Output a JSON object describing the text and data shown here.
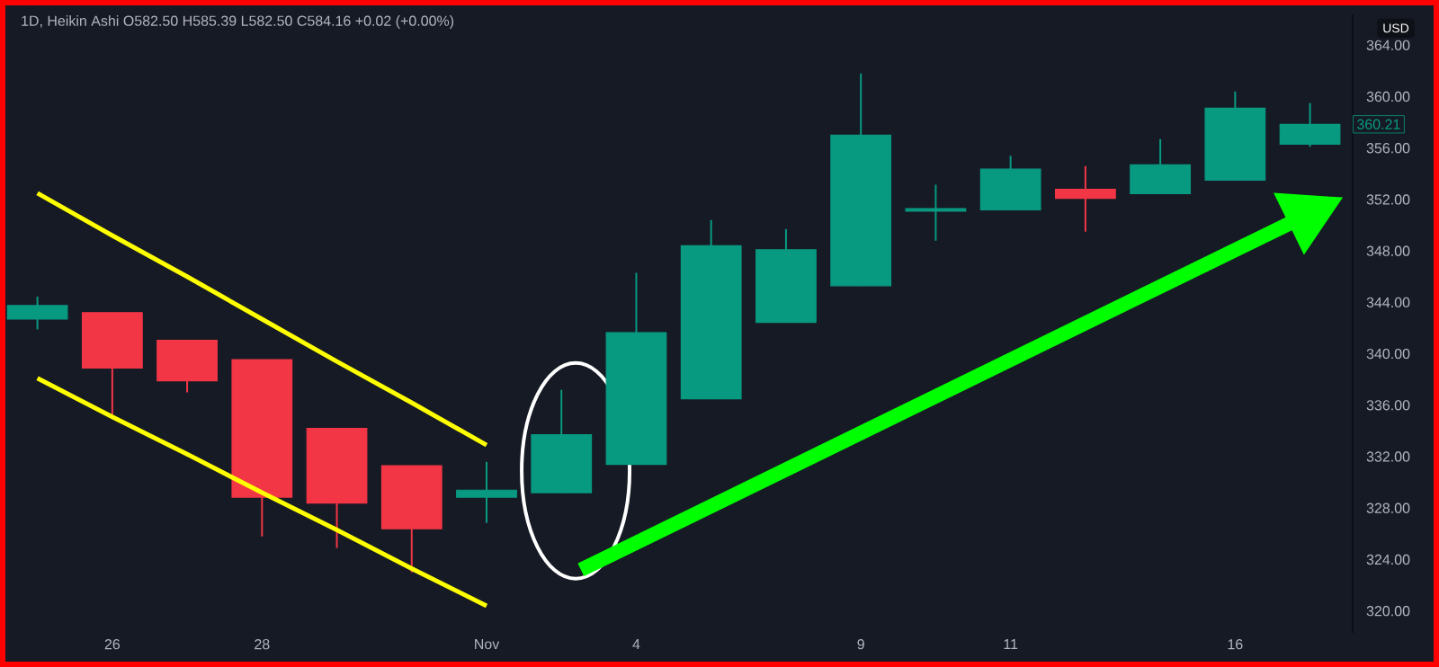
{
  "chart_data": {
    "type": "candlestick",
    "title": "1D, Heikin Ashi  O582.50  H585.39  L582.50  C584.16  +0.02 (+0.00%)",
    "ylabel": "USD",
    "categories": [
      null,
      "26",
      null,
      "28",
      null,
      null,
      "Nov",
      null,
      "4",
      null,
      null,
      "9",
      null,
      "11",
      null,
      null,
      "16",
      null
    ],
    "ohlc": [
      [
        342.7,
        344.45,
        341.9,
        343.75
      ],
      [
        343.2,
        343.2,
        335.1,
        338.9
      ],
      [
        341.05,
        341.05,
        337.0,
        337.9
      ],
      [
        339.55,
        339.55,
        325.8,
        328.85
      ],
      [
        334.2,
        334.2,
        324.9,
        328.4
      ],
      [
        331.3,
        331.3,
        323.0,
        326.4
      ],
      [
        328.85,
        331.6,
        326.85,
        329.4
      ],
      [
        329.2,
        337.2,
        329.2,
        333.7
      ],
      [
        331.4,
        346.3,
        331.4,
        341.65
      ],
      [
        336.5,
        350.4,
        336.5,
        348.4
      ],
      [
        342.45,
        349.7,
        342.45,
        348.1
      ],
      [
        345.3,
        361.8,
        345.3,
        357.0
      ],
      [
        351.1,
        353.15,
        348.8,
        351.3
      ],
      [
        351.2,
        355.4,
        351.2,
        354.36
      ],
      [
        352.8,
        354.6,
        349.5,
        352.1
      ],
      [
        352.45,
        356.7,
        352.45,
        354.7
      ],
      [
        353.5,
        360.4,
        353.5,
        359.1
      ],
      [
        356.3,
        359.5,
        356.1,
        357.85
      ]
    ],
    "colors": [
      "#089981",
      "#f23645",
      "#f23645",
      "#f23645",
      "#f23645",
      "#f23645",
      "#089981",
      "#089981",
      "#089981",
      "#089981",
      "#089981",
      "#089981",
      "#089981",
      "#089981",
      "#f23645",
      "#089981",
      "#089981",
      "#089981"
    ],
    "series": [
      {
        "type": "line",
        "color": "#ffff00",
        "values": [
          352.5,
          349.2,
          346.0,
          342.7,
          339.4,
          336.2,
          332.9,
          null,
          null,
          null,
          null,
          null,
          null,
          null,
          null,
          null,
          null,
          null
        ]
      },
      {
        "type": "line",
        "color": "#ffff00",
        "values": [
          338.1,
          335.1,
          332.2,
          329.2,
          326.3,
          323.3,
          320.4,
          null,
          null,
          null,
          null,
          null,
          null,
          null,
          null,
          null,
          null,
          null
        ]
      }
    ],
    "ylim": [
      318.3,
      366.4
    ],
    "yticks": [
      {
        "value": 320,
        "label": "320.00"
      },
      {
        "value": 324,
        "label": "324.00"
      },
      {
        "value": 328,
        "label": "328.00"
      },
      {
        "value": 332,
        "label": "332.00"
      },
      {
        "value": 336,
        "label": "336.00"
      },
      {
        "value": 340,
        "label": "340.00"
      },
      {
        "value": 344,
        "label": "344.00"
      },
      {
        "value": 348,
        "label": "348.00"
      },
      {
        "value": 352,
        "label": "352.00"
      },
      {
        "value": 356,
        "label": "356.00"
      },
      {
        "value": 360,
        "label": "360.00"
      },
      {
        "value": 364,
        "label": "364.00"
      }
    ],
    "annotations": [
      "360.21"
    ]
  }
}
